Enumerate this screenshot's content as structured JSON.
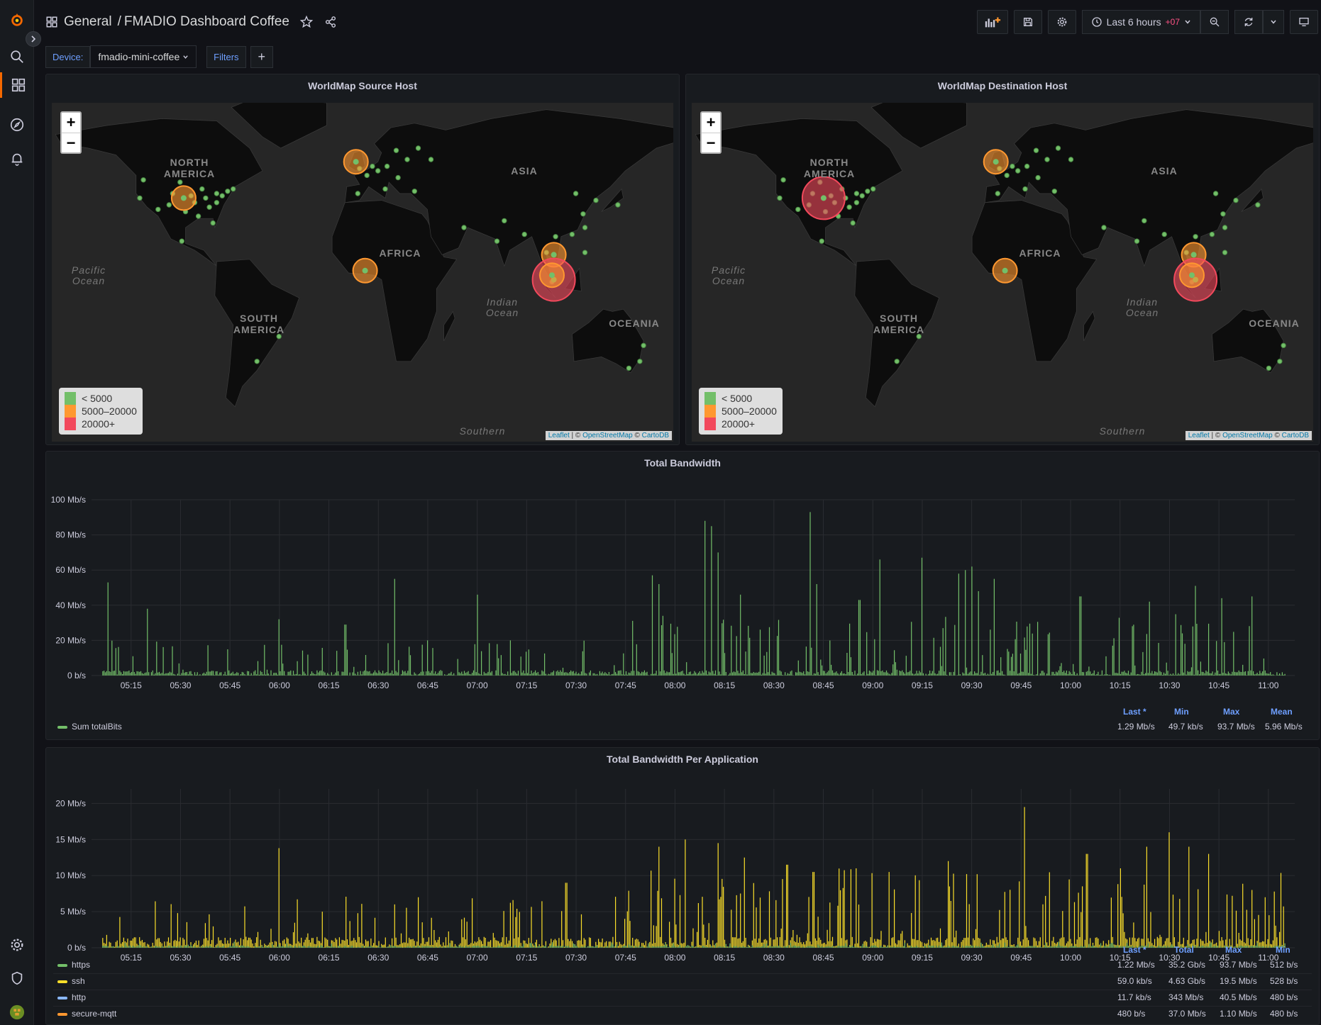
{
  "header": {
    "folder": "General",
    "separator": "/",
    "dashboard_title": "FMADIO Dashboard Coffee",
    "time_range": "Last 6 hours",
    "timezone_offset": "+07"
  },
  "variables": {
    "device_label": "Device:",
    "device_value": "fmadio-mini-coffee",
    "filters_label": "Filters",
    "add_label": "+"
  },
  "maps": [
    {
      "title": "WorldMap Source Host",
      "circles": [
        {
          "lon": -98,
          "lat": 38,
          "level": "mid"
        },
        {
          "lon": -4,
          "lat": 54,
          "level": "mid"
        },
        {
          "lon": 1,
          "lat": 6,
          "level": "mid"
        },
        {
          "lon": 104,
          "lat": 13,
          "level": "mid"
        },
        {
          "lon": 104,
          "lat": 2,
          "level": "high"
        },
        {
          "lon": 103,
          "lat": 4,
          "level": "mid"
        }
      ]
    },
    {
      "title": "WorldMap Destination Host",
      "circles": [
        {
          "lon": -98,
          "lat": 38,
          "level": "high"
        },
        {
          "lon": -4,
          "lat": 54,
          "level": "mid"
        },
        {
          "lon": 1,
          "lat": 6,
          "level": "mid"
        },
        {
          "lon": 104,
          "lat": 13,
          "level": "mid"
        },
        {
          "lon": 105,
          "lat": 2,
          "level": "high"
        },
        {
          "lon": 103,
          "lat": 4,
          "level": "mid"
        }
      ]
    }
  ],
  "map_labels": {
    "north_america": "NORTH\nAMERICA",
    "south_america": "SOUTH\nAMERICA",
    "africa": "AFRICA",
    "asia": "ASIA",
    "oceania": "OCEANIA",
    "pacific": "Pacific\nOcean",
    "indian": "Indian\nOcean",
    "southern": "Southern"
  },
  "map_legend": [
    {
      "label": "< 5000",
      "color": "#73bf69"
    },
    {
      "label": "5000–20000",
      "color": "#ff9830"
    },
    {
      "label": "20000+",
      "color": "#f2495c"
    }
  ],
  "attribution": {
    "leaflet": "Leaflet",
    "sep": " | © ",
    "osm": "OpenStreetMap",
    "copy": " © ",
    "carto": "CartoDB"
  },
  "chart_data": [
    {
      "type": "line",
      "title": "Total Bandwidth",
      "x_ticks": [
        "05:15",
        "05:30",
        "05:45",
        "06:00",
        "06:15",
        "06:30",
        "06:45",
        "07:00",
        "07:15",
        "07:30",
        "07:45",
        "08:00",
        "08:15",
        "08:30",
        "08:45",
        "09:00",
        "09:15",
        "09:30",
        "09:45",
        "10:00",
        "10:15",
        "10:30",
        "10:45",
        "11:00"
      ],
      "y_ticks": [
        "0 b/s",
        "20 Mb/s",
        "40 Mb/s",
        "60 Mb/s",
        "80 Mb/s",
        "100 Mb/s"
      ],
      "ylim": [
        0,
        100
      ],
      "y_unit": "Mb/s",
      "color": "#73bf69",
      "series": [
        {
          "name": "Sum totalBits",
          "stats": {
            "Last *": "1.29 Mb/s",
            "Min": "49.7 kb/s",
            "Max": "93.7 Mb/s",
            "Mean": "5.96 Mb/s"
          },
          "peaks": [
            [
              "05:08",
              53
            ],
            [
              "05:20",
              38
            ],
            [
              "06:00",
              32
            ],
            [
              "06:20",
              29
            ],
            [
              "06:35",
              55
            ],
            [
              "06:45",
              20
            ],
            [
              "07:00",
              46
            ],
            [
              "07:10",
              20
            ],
            [
              "07:53",
              57
            ],
            [
              "07:55",
              52
            ],
            [
              "08:09",
              88
            ],
            [
              "08:11",
              85
            ],
            [
              "08:13",
              70
            ],
            [
              "08:20",
              46
            ],
            [
              "08:41",
              93
            ],
            [
              "08:43",
              52
            ],
            [
              "08:56",
              43
            ],
            [
              "09:02",
              66
            ],
            [
              "09:15",
              67
            ],
            [
              "09:26",
              58
            ],
            [
              "09:28",
              60
            ],
            [
              "09:30",
              62
            ],
            [
              "09:32",
              48
            ],
            [
              "09:37",
              55
            ],
            [
              "10:03",
              45
            ],
            [
              "10:24",
              42
            ],
            [
              "10:38",
              51
            ],
            [
              "10:46",
              44
            ],
            [
              "10:55",
              45
            ]
          ]
        }
      ]
    },
    {
      "type": "line",
      "title": "Total Bandwidth Per Application",
      "x_ticks": [
        "05:15",
        "05:30",
        "05:45",
        "06:00",
        "06:15",
        "06:30",
        "06:45",
        "07:00",
        "07:15",
        "07:30",
        "07:45",
        "08:00",
        "08:15",
        "08:30",
        "08:45",
        "09:00",
        "09:15",
        "09:30",
        "09:45",
        "10:00",
        "10:15",
        "10:30",
        "10:45",
        "11:00"
      ],
      "y_ticks": [
        "0 b/s",
        "5 Mb/s",
        "10 Mb/s",
        "15 Mb/s",
        "20 Mb/s"
      ],
      "ylim": [
        0,
        22
      ],
      "y_unit": "Mb/s",
      "stat_headers": [
        "Last *",
        "Total",
        "Max",
        "Min"
      ],
      "series": [
        {
          "name": "https",
          "color": "#73bf69",
          "stats": [
            "1.22 Mb/s",
            "35.2 Gb/s",
            "93.7 Mb/s",
            "512 b/s"
          ]
        },
        {
          "name": "ssh",
          "color": "#fade2a",
          "stats": [
            "59.0 kb/s",
            "4.63 Gb/s",
            "19.5 Mb/s",
            "528 b/s"
          ],
          "peaks": [
            [
              "06:00",
              13.8
            ],
            [
              "06:13",
              5
            ],
            [
              "06:35",
              6
            ],
            [
              "06:42",
              7
            ],
            [
              "07:27",
              9
            ],
            [
              "07:55",
              14
            ],
            [
              "08:03",
              15
            ],
            [
              "08:13",
              14.5
            ],
            [
              "08:21",
              12.5
            ],
            [
              "08:34",
              11.5
            ],
            [
              "08:42",
              10.5
            ],
            [
              "08:55",
              11
            ],
            [
              "09:05",
              10.5
            ],
            [
              "09:23",
              12
            ],
            [
              "09:46",
              19.5
            ],
            [
              "10:05",
              13
            ],
            [
              "10:15",
              11
            ],
            [
              "10:23",
              14
            ],
            [
              "10:30",
              16
            ],
            [
              "10:36",
              14
            ],
            [
              "10:42",
              13
            ],
            [
              "10:55",
              8
            ]
          ]
        },
        {
          "name": "http",
          "color": "#8ab8ff",
          "stats": [
            "11.7 kb/s",
            "343 Mb/s",
            "40.5 Mb/s",
            "480 b/s"
          ]
        },
        {
          "name": "secure-mqtt",
          "color": "#ff9830",
          "stats": [
            "480 b/s",
            "37.0 Mb/s",
            "1.10 Mb/s",
            "480 b/s"
          ]
        }
      ]
    }
  ],
  "icons": {
    "logo": "grafana-logo-icon",
    "search": "search-icon",
    "dashboards": "dashboards-icon",
    "explore": "compass-icon",
    "alerting": "bell-icon",
    "config": "gear-icon",
    "admin": "shield-icon",
    "user": "avatar-icon"
  }
}
